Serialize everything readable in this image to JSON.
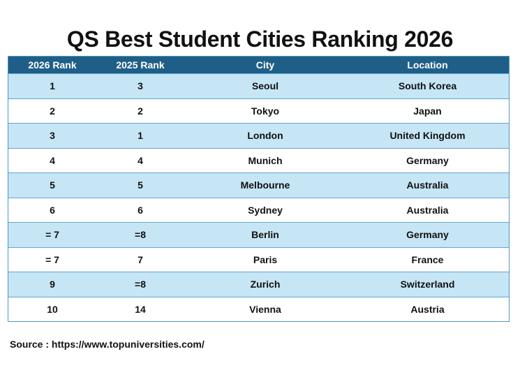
{
  "chart_data": {
    "type": "table",
    "title": "QS Best Student Cities Ranking 2026",
    "columns": [
      "2026 Rank",
      "2025 Rank",
      "City",
      "Location"
    ],
    "rows": [
      [
        "1",
        "3",
        "Seoul",
        "South Korea"
      ],
      [
        "2",
        "2",
        "Tokyo",
        "Japan"
      ],
      [
        "3",
        "1",
        "London",
        "United Kingdom"
      ],
      [
        "4",
        "4",
        "Munich",
        "Germany"
      ],
      [
        "5",
        "5",
        "Melbourne",
        "Australia"
      ],
      [
        "6",
        "6",
        "Sydney",
        "Australia"
      ],
      [
        "= 7",
        "=8",
        "Berlin",
        "Germany"
      ],
      [
        "= 7",
        "7",
        "Paris",
        "France"
      ],
      [
        "9",
        "=8",
        "Zurich",
        "Switzerland"
      ],
      [
        "10",
        "14",
        "Vienna",
        "Austria"
      ]
    ],
    "source": "Source : https://www.topuniversities.com/"
  },
  "colors": {
    "header_bg": "#1f5f87",
    "header_text": "#ffffff",
    "band_row": "#c6e5f5",
    "plain_row": "#ffffff",
    "grid_line": "#5fa8d6"
  }
}
